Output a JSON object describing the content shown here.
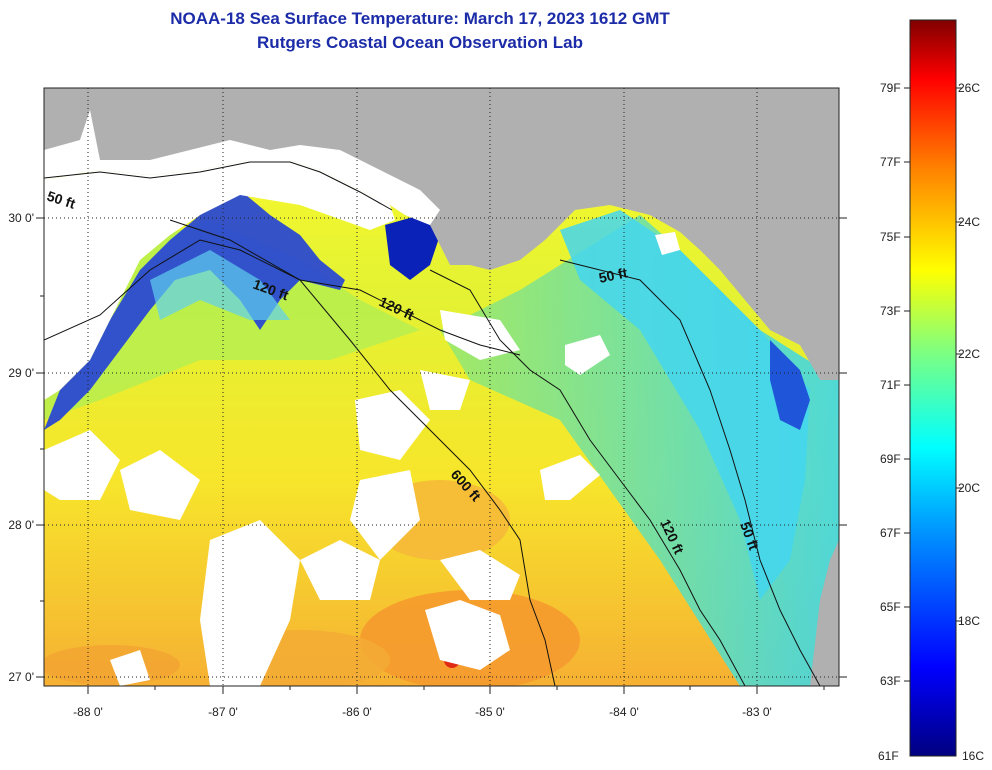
{
  "header": {
    "title_line1": "NOAA-18 Sea Surface Temperature:  March 17, 2023 1612 GMT",
    "title_line2": "Rutgers Coastal Ocean Observation Lab"
  },
  "map": {
    "lon_labels": [
      "-88 0'",
      "-87 0'",
      "-86 0'",
      "-85 0'",
      "-84 0'",
      "-83 0'"
    ],
    "lat_labels": [
      "30 0'",
      "29 0'",
      "28 0'",
      "27 0'"
    ],
    "contour_labels": {
      "c50_west": "50 ft",
      "c120_west": "120 ft",
      "c120_center": "120 ft",
      "c600": "600 ft",
      "c50_east": "50 ft",
      "c120_east": "120 ft",
      "c50_south": "50 ft"
    },
    "colors": {
      "land": "#b0b0b0",
      "cloud": "#ffffff"
    }
  },
  "colorbar": {
    "fahrenheit_labels": [
      "79F",
      "77F",
      "75F",
      "73F",
      "71F",
      "69F",
      "67F",
      "65F",
      "63F",
      "61F"
    ],
    "celsius_labels": [
      "26C",
      "24C",
      "22C",
      "20C",
      "18C",
      "16C"
    ],
    "min_c": 16,
    "max_c": 27
  }
}
